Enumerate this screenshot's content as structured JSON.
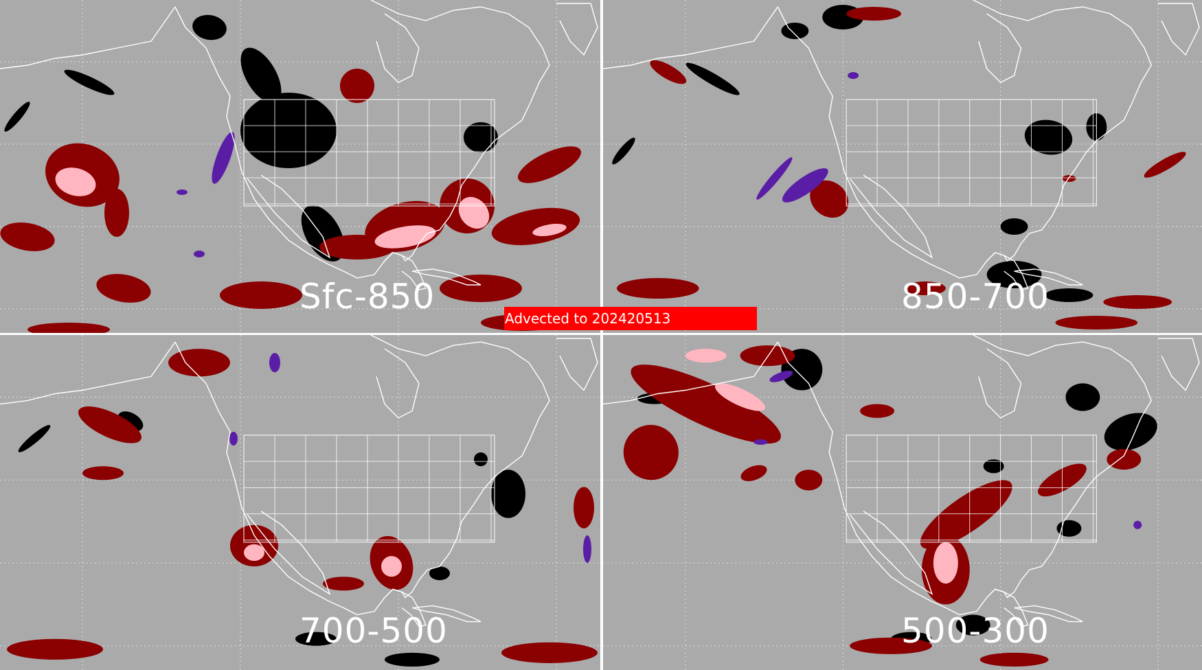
{
  "figure": {
    "banner_text": "Advected to  202420513",
    "background_color": "#aaaaaa",
    "panels": [
      {
        "id": "sfc-850",
        "label": "Sfc-850"
      },
      {
        "id": "850-700",
        "label": "850-700"
      },
      {
        "id": "700-500",
        "label": "700-500"
      },
      {
        "id": "500-300",
        "label": "500-300"
      }
    ]
  },
  "legend_colors": {
    "land_outline": "#ffffff",
    "grid": "#dddddd",
    "class_dark_red": "#8b0000",
    "class_pink": "#ffb6c1",
    "class_black": "#000000",
    "class_purple": "#5a1ea6",
    "banner": "#ff0000"
  },
  "map": {
    "projection": "cylindrical",
    "grid_lines": true,
    "region": "North America and surrounding Pacific / Atlantic"
  }
}
